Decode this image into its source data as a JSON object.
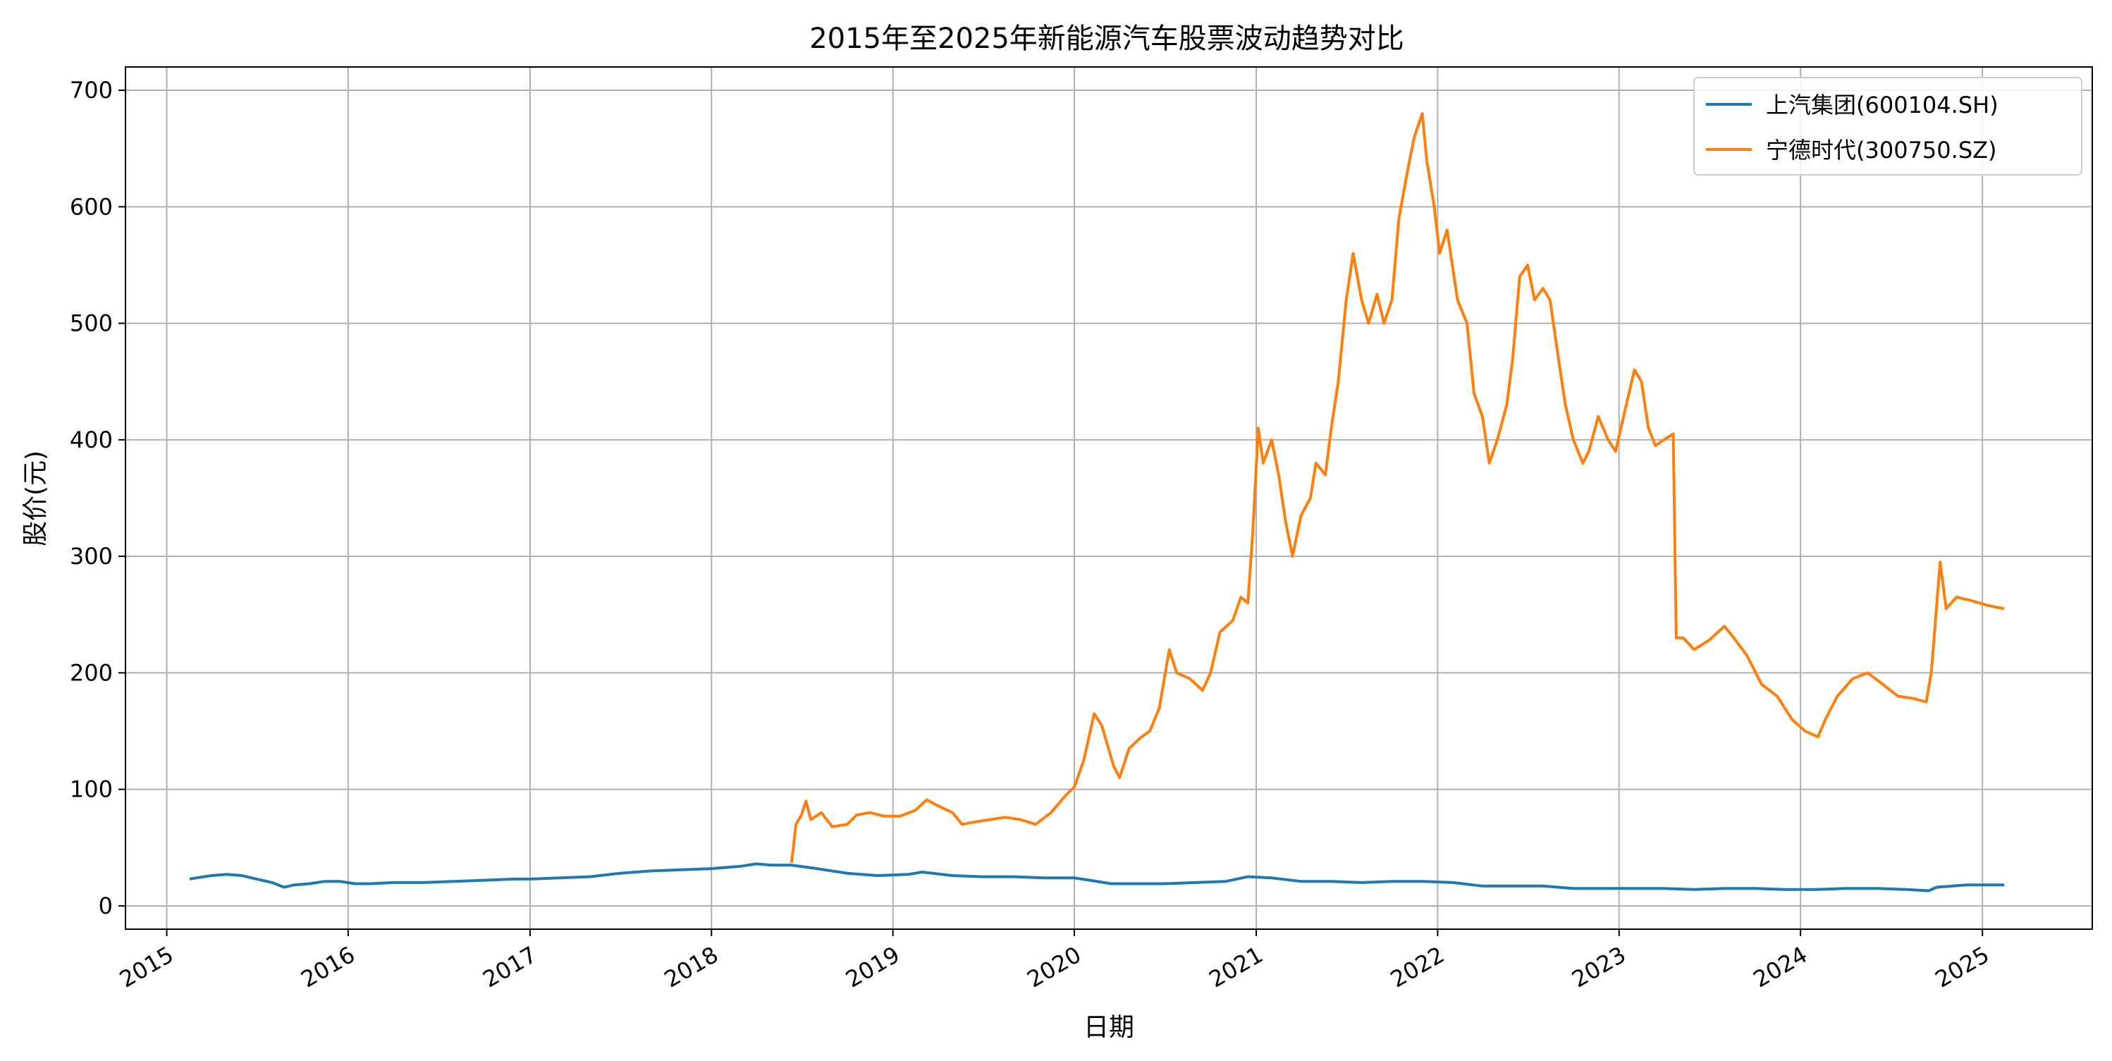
{
  "chart_data": {
    "type": "line",
    "title": "2015年至2025年新能源汽车股票波动趋势对比",
    "xlabel": "日期",
    "ylabel": "股价(元)",
    "x_type": "date",
    "xlim": [
      "2014-10-10",
      "2025-08-10"
    ],
    "ylim": [
      -20,
      720
    ],
    "x_ticks": [
      "2015",
      "2016",
      "2017",
      "2018",
      "2019",
      "2020",
      "2021",
      "2022",
      "2023",
      "2024",
      "2025"
    ],
    "y_ticks": [
      "0",
      "100",
      "200",
      "300",
      "400",
      "500",
      "600",
      "700"
    ],
    "grid": true,
    "legend_position": "top-right",
    "series": [
      {
        "name": "上汽集团(600104.SH)",
        "color": "#1f77b4",
        "points": [
          [
            "2015-02-16",
            23
          ],
          [
            "2015-03-01",
            24
          ],
          [
            "2015-04-01",
            26
          ],
          [
            "2015-05-01",
            27
          ],
          [
            "2015-06-01",
            26
          ],
          [
            "2015-07-01",
            23
          ],
          [
            "2015-08-01",
            20
          ],
          [
            "2015-08-25",
            16
          ],
          [
            "2015-09-15",
            18
          ],
          [
            "2015-10-15",
            19
          ],
          [
            "2015-11-15",
            21
          ],
          [
            "2015-12-15",
            21
          ],
          [
            "2016-01-15",
            19
          ],
          [
            "2016-02-15",
            19
          ],
          [
            "2016-04-01",
            20
          ],
          [
            "2016-06-01",
            20
          ],
          [
            "2016-08-01",
            21
          ],
          [
            "2016-10-01",
            22
          ],
          [
            "2016-12-01",
            23
          ],
          [
            "2017-01-01",
            23
          ],
          [
            "2017-03-01",
            24
          ],
          [
            "2017-05-01",
            25
          ],
          [
            "2017-07-01",
            28
          ],
          [
            "2017-09-01",
            30
          ],
          [
            "2017-11-01",
            31
          ],
          [
            "2018-01-01",
            32
          ],
          [
            "2018-03-01",
            34
          ],
          [
            "2018-04-01",
            36
          ],
          [
            "2018-05-01",
            35
          ],
          [
            "2018-06-11",
            35
          ],
          [
            "2018-08-01",
            32
          ],
          [
            "2018-10-01",
            28
          ],
          [
            "2018-12-01",
            26
          ],
          [
            "2019-02-01",
            27
          ],
          [
            "2019-03-01",
            29
          ],
          [
            "2019-05-01",
            26
          ],
          [
            "2019-07-01",
            25
          ],
          [
            "2019-09-01",
            25
          ],
          [
            "2019-11-01",
            24
          ],
          [
            "2020-01-01",
            24
          ],
          [
            "2020-02-01",
            22
          ],
          [
            "2020-03-15",
            19
          ],
          [
            "2020-05-01",
            19
          ],
          [
            "2020-07-01",
            19
          ],
          [
            "2020-09-01",
            20
          ],
          [
            "2020-11-01",
            21
          ],
          [
            "2020-12-15",
            25
          ],
          [
            "2021-02-01",
            24
          ],
          [
            "2021-04-01",
            21
          ],
          [
            "2021-06-01",
            21
          ],
          [
            "2021-08-01",
            20
          ],
          [
            "2021-10-01",
            21
          ],
          [
            "2021-12-01",
            21
          ],
          [
            "2022-02-01",
            20
          ],
          [
            "2022-04-01",
            17
          ],
          [
            "2022-06-01",
            17
          ],
          [
            "2022-08-01",
            17
          ],
          [
            "2022-10-01",
            15
          ],
          [
            "2022-12-01",
            15
          ],
          [
            "2023-02-01",
            15
          ],
          [
            "2023-04-01",
            15
          ],
          [
            "2023-06-01",
            14
          ],
          [
            "2023-08-01",
            15
          ],
          [
            "2023-10-01",
            15
          ],
          [
            "2023-12-01",
            14
          ],
          [
            "2024-02-01",
            14
          ],
          [
            "2024-04-01",
            15
          ],
          [
            "2024-06-01",
            15
          ],
          [
            "2024-08-01",
            14
          ],
          [
            "2024-09-15",
            13
          ],
          [
            "2024-10-01",
            16
          ],
          [
            "2024-12-01",
            18
          ],
          [
            "2025-01-01",
            18
          ],
          [
            "2025-02-14",
            18
          ]
        ]
      },
      {
        "name": "宁德时代(300750.SZ)",
        "color": "#ff7f0e",
        "points": [
          [
            "2018-06-11",
            37
          ],
          [
            "2018-06-20",
            70
          ],
          [
            "2018-07-01",
            78
          ],
          [
            "2018-07-10",
            90
          ],
          [
            "2018-07-20",
            74
          ],
          [
            "2018-08-10",
            80
          ],
          [
            "2018-09-01",
            68
          ],
          [
            "2018-10-01",
            70
          ],
          [
            "2018-10-20",
            78
          ],
          [
            "2018-11-15",
            80
          ],
          [
            "2018-12-15",
            77
          ],
          [
            "2019-01-15",
            77
          ],
          [
            "2019-02-15",
            82
          ],
          [
            "2019-03-10",
            91
          ],
          [
            "2019-04-01",
            86
          ],
          [
            "2019-05-01",
            80
          ],
          [
            "2019-05-20",
            70
          ],
          [
            "2019-06-15",
            72
          ],
          [
            "2019-07-15",
            74
          ],
          [
            "2019-08-15",
            76
          ],
          [
            "2019-09-15",
            74
          ],
          [
            "2019-10-15",
            70
          ],
          [
            "2019-11-15",
            80
          ],
          [
            "2019-12-15",
            95
          ],
          [
            "2020-01-01",
            102
          ],
          [
            "2020-01-20",
            125
          ],
          [
            "2020-02-10",
            165
          ],
          [
            "2020-02-25",
            155
          ],
          [
            "2020-03-20",
            120
          ],
          [
            "2020-04-01",
            110
          ],
          [
            "2020-04-20",
            135
          ],
          [
            "2020-05-15",
            145
          ],
          [
            "2020-06-01",
            150
          ],
          [
            "2020-06-20",
            170
          ],
          [
            "2020-07-10",
            220
          ],
          [
            "2020-07-25",
            200
          ],
          [
            "2020-08-20",
            195
          ],
          [
            "2020-09-15",
            185
          ],
          [
            "2020-10-01",
            200
          ],
          [
            "2020-10-20",
            235
          ],
          [
            "2020-11-15",
            245
          ],
          [
            "2020-12-01",
            265
          ],
          [
            "2020-12-15",
            260
          ],
          [
            "2020-12-25",
            320
          ],
          [
            "2021-01-05",
            410
          ],
          [
            "2021-01-15",
            380
          ],
          [
            "2021-02-01",
            400
          ],
          [
            "2021-02-15",
            370
          ],
          [
            "2021-03-01",
            330
          ],
          [
            "2021-03-15",
            300
          ],
          [
            "2021-04-01",
            335
          ],
          [
            "2021-04-20",
            350
          ],
          [
            "2021-05-01",
            380
          ],
          [
            "2021-05-20",
            370
          ],
          [
            "2021-06-01",
            410
          ],
          [
            "2021-06-15",
            450
          ],
          [
            "2021-07-01",
            520
          ],
          [
            "2021-07-15",
            560
          ],
          [
            "2021-08-01",
            520
          ],
          [
            "2021-08-15",
            500
          ],
          [
            "2021-09-01",
            525
          ],
          [
            "2021-09-15",
            500
          ],
          [
            "2021-10-01",
            520
          ],
          [
            "2021-10-15",
            590
          ],
          [
            "2021-11-01",
            630
          ],
          [
            "2021-11-15",
            660
          ],
          [
            "2021-12-01",
            680
          ],
          [
            "2021-12-10",
            640
          ],
          [
            "2021-12-25",
            600
          ],
          [
            "2022-01-05",
            560
          ],
          [
            "2022-01-20",
            580
          ],
          [
            "2022-02-10",
            520
          ],
          [
            "2022-03-01",
            500
          ],
          [
            "2022-03-15",
            440
          ],
          [
            "2022-04-01",
            420
          ],
          [
            "2022-04-15",
            380
          ],
          [
            "2022-05-01",
            400
          ],
          [
            "2022-05-20",
            430
          ],
          [
            "2022-06-01",
            470
          ],
          [
            "2022-06-15",
            540
          ],
          [
            "2022-07-01",
            550
          ],
          [
            "2022-07-15",
            520
          ],
          [
            "2022-08-01",
            530
          ],
          [
            "2022-08-15",
            520
          ],
          [
            "2022-09-01",
            470
          ],
          [
            "2022-09-15",
            430
          ],
          [
            "2022-10-01",
            400
          ],
          [
            "2022-10-20",
            380
          ],
          [
            "2022-11-01",
            390
          ],
          [
            "2022-11-20",
            420
          ],
          [
            "2022-12-10",
            400
          ],
          [
            "2022-12-25",
            390
          ],
          [
            "2023-01-10",
            420
          ],
          [
            "2023-02-01",
            460
          ],
          [
            "2023-02-15",
            450
          ],
          [
            "2023-03-01",
            410
          ],
          [
            "2023-03-15",
            395
          ],
          [
            "2023-04-01",
            400
          ],
          [
            "2023-04-20",
            405
          ],
          [
            "2023-04-26",
            230
          ],
          [
            "2023-05-10",
            230
          ],
          [
            "2023-06-01",
            220
          ],
          [
            "2023-07-01",
            228
          ],
          [
            "2023-08-01",
            240
          ],
          [
            "2023-08-20",
            230
          ],
          [
            "2023-09-15",
            215
          ],
          [
            "2023-10-15",
            190
          ],
          [
            "2023-11-15",
            180
          ],
          [
            "2023-12-15",
            160
          ],
          [
            "2024-01-10",
            150
          ],
          [
            "2024-02-05",
            145
          ],
          [
            "2024-02-20",
            160
          ],
          [
            "2024-03-15",
            180
          ],
          [
            "2024-04-15",
            195
          ],
          [
            "2024-05-15",
            200
          ],
          [
            "2024-06-15",
            190
          ],
          [
            "2024-07-15",
            180
          ],
          [
            "2024-08-15",
            178
          ],
          [
            "2024-09-10",
            175
          ],
          [
            "2024-09-20",
            200
          ],
          [
            "2024-10-08",
            295
          ],
          [
            "2024-10-20",
            255
          ],
          [
            "2024-11-10",
            265
          ],
          [
            "2024-12-10",
            262
          ],
          [
            "2025-01-10",
            258
          ],
          [
            "2025-02-14",
            255
          ]
        ]
      }
    ]
  }
}
